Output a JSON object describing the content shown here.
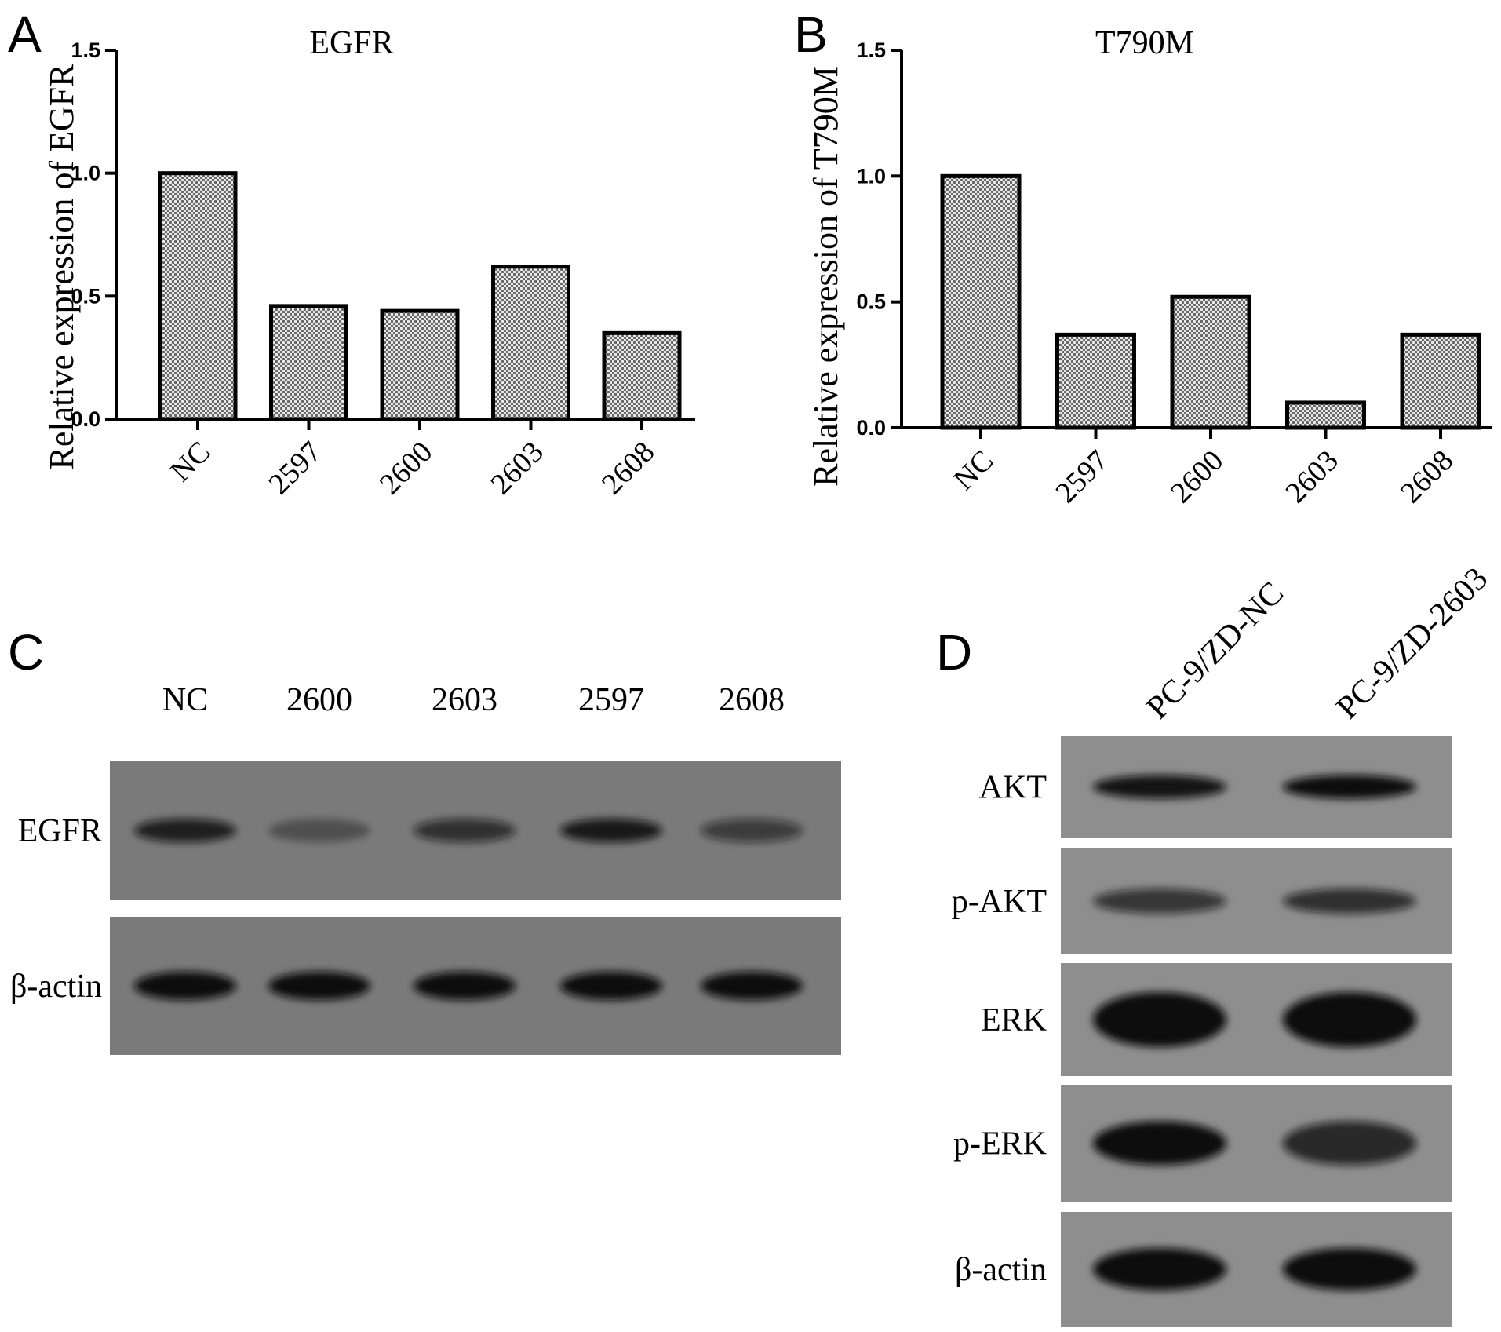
{
  "panels": {
    "A": "A",
    "B": "B",
    "C": "C",
    "D": "D"
  },
  "chart_data": [
    {
      "type": "bar",
      "title": "EGFR",
      "xlabel": "",
      "ylabel": "Relative expression of EGFR",
      "categories": [
        "NC",
        "2597",
        "2600",
        "2603",
        "2608"
      ],
      "values": [
        1.0,
        0.46,
        0.44,
        0.62,
        0.35
      ],
      "ylim": [
        0,
        1.5
      ],
      "yticks": [
        "0.0",
        "0.5",
        "1.0",
        "1.5"
      ],
      "grid": false
    },
    {
      "type": "bar",
      "title": "T790M",
      "xlabel": "",
      "ylabel": "Relative expression of T790M",
      "categories": [
        "NC",
        "2597",
        "2600",
        "2603",
        "2608"
      ],
      "values": [
        1.0,
        0.37,
        0.52,
        0.1,
        0.37
      ],
      "ylim": [
        0,
        1.5
      ],
      "yticks": [
        "0.0",
        "0.5",
        "1.0",
        "1.5"
      ],
      "grid": false
    }
  ],
  "blot_c": {
    "lanes": [
      "NC",
      "2600",
      "2603",
      "2597",
      "2608"
    ],
    "rows": [
      {
        "label": "EGFR",
        "intensities": [
          0.85,
          0.35,
          0.7,
          0.9,
          0.6
        ]
      },
      {
        "label": "β-actin",
        "intensities": [
          1.0,
          1.0,
          1.0,
          1.0,
          1.0
        ]
      }
    ]
  },
  "blot_d": {
    "lanes": [
      "PC-9/ZD-NC",
      "PC-9/ZD-2603"
    ],
    "rows": [
      {
        "label": "AKT",
        "intensities": [
          0.95,
          1.0
        ]
      },
      {
        "label": "p-AKT",
        "intensities": [
          0.7,
          0.75
        ]
      },
      {
        "label": "ERK",
        "intensities": [
          1.0,
          1.0
        ]
      },
      {
        "label": "p-ERK",
        "intensities": [
          1.0,
          0.8
        ]
      },
      {
        "label": "β-actin",
        "intensities": [
          1.0,
          1.0
        ]
      }
    ]
  }
}
